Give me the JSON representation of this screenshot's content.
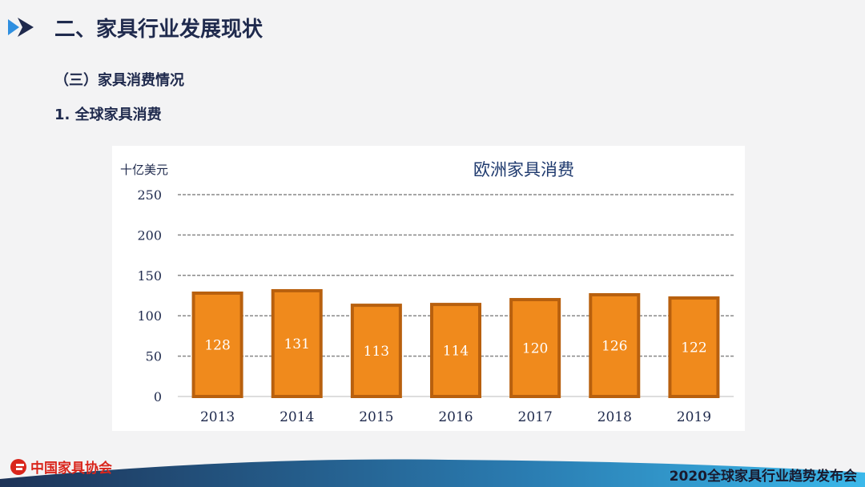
{
  "header": {
    "title": "二、家具行业发展现状",
    "section": "（三）家具消费情况",
    "subsection": "1. 全球家具消费"
  },
  "chart_data": {
    "type": "bar",
    "title": "欧洲家具消费",
    "ylabel": "十亿美元",
    "categories": [
      "2013",
      "2014",
      "2015",
      "2016",
      "2017",
      "2018",
      "2019"
    ],
    "values": [
      128,
      131,
      113,
      114,
      120,
      126,
      122
    ],
    "ylim": [
      0,
      250
    ],
    "yticks": [
      0,
      50,
      100,
      150,
      200,
      250
    ],
    "grid": true,
    "bar_color": "#f08a1c",
    "bar_border": "#b8600e"
  },
  "footer": {
    "logo_text": "中国家具协会",
    "event": "2020全球家具行业趋势发布会"
  }
}
